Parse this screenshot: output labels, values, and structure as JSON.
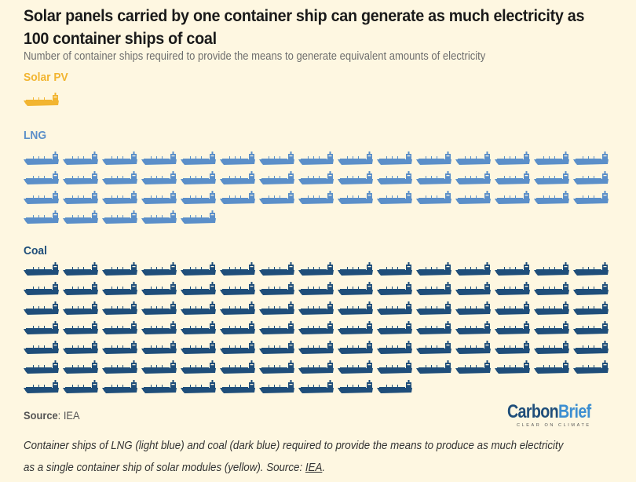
{
  "title": "Solar panels carried by one container ship can generate as much electricity as 100 container ships of coal",
  "subtitle": "Number of container ships required to provide the means to generate equivalent amounts of electricity",
  "source_label": "Source",
  "source_value": ": IEA",
  "logo": {
    "carbon": "Carbon",
    "brief": "Brief",
    "tagline": "CLEAR ON CLIMATE"
  },
  "caption": {
    "text": "Container ships of LNG (light blue) and coal (dark blue) required to provide the means to produce as much electricity as a single container ship of solar modules (yellow). Source: ",
    "link": "IEA",
    "end": "."
  },
  "colors": {
    "solar": "#f2b531",
    "lng": "#5b8fc9",
    "coal": "#1f4e7a",
    "background": "#fef7e1"
  },
  "chart_data": {
    "type": "pictogram",
    "title": "Solar panels carried by one container ship can generate as much electricity as 100 container ships of coal",
    "subtitle": "Number of container ships required to provide the means to generate equivalent amounts of electricity",
    "unit": "container ships",
    "icons_per_row": 15,
    "series": [
      {
        "name": "Solar PV",
        "value": 1,
        "color": "#f2b531"
      },
      {
        "name": "LNG",
        "value": 50,
        "color": "#5b8fc9"
      },
      {
        "name": "Coal",
        "value": 100,
        "color": "#1f4e7a"
      }
    ],
    "source": "IEA"
  }
}
